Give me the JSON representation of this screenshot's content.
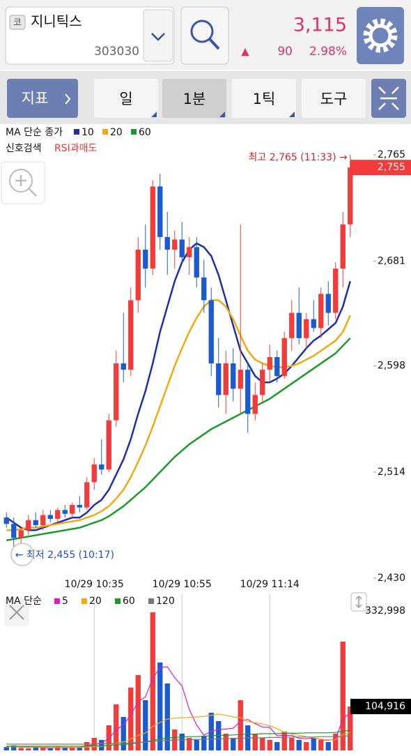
{
  "header": {
    "market": "코",
    "name": "지니틱스",
    "code": "303030",
    "price": "3,115",
    "arrow": "▲",
    "change": "90",
    "percent": "2.98%"
  },
  "toolbar": {
    "indicator": "지표",
    "tabs": [
      "일",
      "1분",
      "1틱",
      "도구"
    ]
  },
  "chart_data": [
    {
      "type": "candlestick",
      "legend_title": "MA 단순 종가",
      "signal_label": "신호검색",
      "signal": "RSI과매도",
      "up_color": "#f23b3b",
      "down_color": "#1c5ad0",
      "categories": [
        null,
        null,
        null,
        null,
        null,
        null,
        null,
        null,
        null,
        null,
        null,
        null,
        "10/29 10:35",
        null,
        null,
        null,
        null,
        null,
        null,
        null,
        null,
        null,
        null,
        null,
        "10/29 10:55",
        null,
        null,
        null,
        null,
        null,
        null,
        null,
        null,
        null,
        null,
        null,
        "10/29 11:14",
        null,
        null,
        null,
        null,
        null,
        null,
        null,
        null,
        null,
        null,
        null
      ],
      "open": [
        2478,
        2473,
        2462,
        2468,
        2476,
        2472,
        2480,
        2477,
        2484,
        2481,
        2488,
        2486,
        2506,
        2520,
        2516,
        2555,
        2600,
        2595,
        2650,
        2690,
        2675,
        2740,
        2700,
        2690,
        2698,
        2684,
        2692,
        2668,
        2650,
        2600,
        2575,
        2600,
        2580,
        2595,
        2560,
        2575,
        2595,
        2605,
        2590,
        2620,
        2640,
        2620,
        2635,
        2628,
        2655,
        2640,
        2675,
        2710
      ],
      "high": [
        2482,
        2478,
        2470,
        2480,
        2482,
        2484,
        2484,
        2486,
        2488,
        2490,
        2495,
        2510,
        2525,
        2540,
        2560,
        2610,
        2640,
        2660,
        2700,
        2710,
        2745,
        2750,
        2720,
        2705,
        2712,
        2700,
        2700,
        2682,
        2660,
        2620,
        2610,
        2612,
        2710,
        2600,
        2585,
        2600,
        2615,
        2610,
        2625,
        2650,
        2660,
        2640,
        2650,
        2660,
        2665,
        2680,
        2720,
        2765
      ],
      "low": [
        2470,
        2455,
        2458,
        2464,
        2470,
        2468,
        2474,
        2474,
        2478,
        2478,
        2482,
        2484,
        2500,
        2512,
        2514,
        2550,
        2585,
        2590,
        2640,
        2660,
        2670,
        2690,
        2670,
        2675,
        2680,
        2670,
        2660,
        2640,
        2590,
        2565,
        2560,
        2570,
        2560,
        2545,
        2555,
        2570,
        2585,
        2585,
        2588,
        2610,
        2615,
        2612,
        2625,
        2620,
        2630,
        2635,
        2660,
        2700
      ],
      "close": [
        2473,
        2462,
        2468,
        2476,
        2472,
        2480,
        2477,
        2484,
        2481,
        2488,
        2486,
        2506,
        2520,
        2516,
        2555,
        2600,
        2595,
        2650,
        2690,
        2675,
        2740,
        2700,
        2690,
        2698,
        2684,
        2692,
        2668,
        2650,
        2600,
        2575,
        2600,
        2580,
        2595,
        2560,
        2575,
        2595,
        2605,
        2590,
        2620,
        2640,
        2620,
        2635,
        2628,
        2655,
        2640,
        2675,
        2710,
        2755
      ],
      "series": [
        {
          "name": "10",
          "color": "#1a2fa8",
          "values": [
            2478,
            2474,
            2470,
            2468,
            2468,
            2470,
            2472,
            2474,
            2476,
            2478,
            2478,
            2482,
            2488,
            2492,
            2500,
            2512,
            2524,
            2540,
            2560,
            2578,
            2600,
            2625,
            2645,
            2665,
            2680,
            2690,
            2695,
            2692,
            2685,
            2670,
            2650,
            2630,
            2610,
            2600,
            2590,
            2585,
            2585,
            2588,
            2592,
            2598,
            2605,
            2612,
            2618,
            2622,
            2627,
            2632,
            2645,
            2665
          ]
        },
        {
          "name": "20",
          "color": "#f0aa10",
          "values": [
            2468,
            2468,
            2469,
            2470,
            2470,
            2471,
            2472,
            2473,
            2474,
            2475,
            2476,
            2478,
            2480,
            2483,
            2487,
            2493,
            2500,
            2510,
            2522,
            2535,
            2550,
            2566,
            2582,
            2598,
            2612,
            2625,
            2636,
            2645,
            2650,
            2650,
            2645,
            2635,
            2622,
            2610,
            2603,
            2600,
            2598,
            2597,
            2597,
            2598,
            2600,
            2603,
            2606,
            2610,
            2614,
            2618,
            2625,
            2638
          ]
        },
        {
          "name": "60",
          "color": "#1a9a2a",
          "values": [
            2460,
            2461,
            2462,
            2463,
            2464,
            2465,
            2466,
            2467,
            2468,
            2469,
            2470,
            2472,
            2474,
            2476,
            2479,
            2483,
            2487,
            2492,
            2497,
            2502,
            2508,
            2514,
            2520,
            2526,
            2531,
            2536,
            2540,
            2544,
            2548,
            2551,
            2554,
            2557,
            2560,
            2563,
            2566,
            2569,
            2572,
            2576,
            2580,
            2584,
            2588,
            2592,
            2596,
            2600,
            2604,
            2608,
            2614,
            2620
          ]
        }
      ],
      "ylim": [
        2424,
        2786
      ],
      "yticks": [
        {
          "value": 2765,
          "label": "2,765"
        },
        {
          "value": 2681,
          "label": "2,681"
        },
        {
          "value": 2598,
          "label": "2,598"
        },
        {
          "value": 2514,
          "label": "2,514"
        },
        {
          "value": 2430,
          "label": "2,430"
        }
      ],
      "high_label": "최고 2,765 (11:33) →",
      "low_label": "← 최저 2,455 (10:17)",
      "current_price": {
        "value": 2755,
        "label": "2,755"
      }
    },
    {
      "type": "bar",
      "legend_title": "MA 단순",
      "values": [
        8000,
        12000,
        6000,
        5000,
        7000,
        6000,
        5000,
        9000,
        6000,
        7000,
        8000,
        20000,
        30000,
        25000,
        60000,
        110000,
        80000,
        150000,
        180000,
        120000,
        330000,
        210000,
        160000,
        50000,
        40000,
        30000,
        25000,
        35000,
        90000,
        70000,
        40000,
        30000,
        120000,
        60000,
        40000,
        30000,
        25000,
        20000,
        45000,
        30000,
        25000,
        20000,
        30000,
        25000,
        20000,
        40000,
        260000,
        104916
      ],
      "series": [
        {
          "name": "5",
          "color": "#d81fc4",
          "values": [
            10000,
            9000,
            8000,
            7600,
            8000,
            6000,
            6600,
            6600,
            6600,
            6600,
            7000,
            10000,
            14200,
            18000,
            28600,
            49000,
            61000,
            85000,
            116000,
            128000,
            172000,
            198000,
            200000,
            174000,
            154000,
            98000,
            61000,
            36000,
            46000,
            50000,
            51000,
            53000,
            70000,
            74000,
            64000,
            56000,
            55000,
            35000,
            36000,
            36000,
            29000,
            28000,
            30000,
            26000,
            24000,
            28000,
            75000,
            90000
          ]
        },
        {
          "name": "20",
          "color": "#f0aa10",
          "values": [
            9000,
            9000,
            9000,
            8500,
            8000,
            7800,
            7600,
            7500,
            7400,
            7300,
            7400,
            8000,
            9000,
            10000,
            12500,
            17000,
            20500,
            27500,
            36000,
            41500,
            57000,
            67000,
            75000,
            77000,
            78000,
            79000,
            80000,
            81000,
            84000,
            87000,
            84000,
            80000,
            79000,
            69000,
            66000,
            63000,
            59000,
            52000,
            43000,
            40000,
            36000,
            33000,
            30000,
            27000,
            25000,
            26000,
            38000,
            43000
          ]
        },
        {
          "name": "60",
          "color": "#1a9a2a",
          "values": [
            10000,
            10000,
            10000,
            10000,
            10000,
            10000,
            10000,
            10000,
            10000,
            10000,
            10000,
            10000,
            11000,
            11000,
            12000,
            13000,
            14000,
            16000,
            18000,
            20000,
            24000,
            27000,
            30000,
            31000,
            32000,
            33000,
            33000,
            34000,
            35000,
            36000,
            36000,
            37000,
            38000,
            39000,
            39000,
            40000,
            40000,
            40000,
            41000,
            41000,
            41000,
            42000,
            42000,
            42000,
            42000,
            43000,
            46000,
            48000
          ]
        },
        {
          "name": "120",
          "color": "#777777",
          "values": [
            15000,
            15000,
            15000,
            15000,
            15000,
            15000,
            15000,
            15000,
            15000,
            15000,
            15000,
            15000,
            15000,
            16000,
            16000,
            17000,
            17000,
            18000,
            19000,
            20000,
            22000,
            23000,
            24000,
            25000,
            25000,
            26000,
            26000,
            27000,
            27000,
            28000,
            28000,
            29000,
            29000,
            30000,
            30000,
            30000,
            31000,
            31000,
            31000,
            32000,
            32000,
            32000,
            32000,
            33000,
            33000,
            33000,
            34000,
            35000
          ]
        }
      ],
      "ylim": [
        0,
        360000
      ],
      "yticks": [
        {
          "value": 332998,
          "label": "332,998"
        }
      ],
      "current_value": {
        "value": 104916,
        "label": "104,916"
      }
    }
  ]
}
